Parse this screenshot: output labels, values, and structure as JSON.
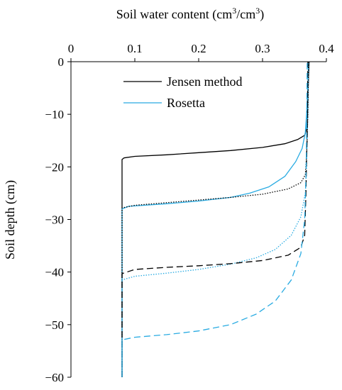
{
  "chart_data": {
    "type": "line",
    "xlabel_main": "Soil water content (cm",
    "xlabel_sup1": "3",
    "xlabel_mid": "/cm",
    "xlabel_sup2": "3",
    "xlabel_end": ")",
    "ylabel": "Soil depth (cm)",
    "xlim": [
      0,
      0.4
    ],
    "ylim": [
      -60,
      0
    ],
    "x_ticks": [
      "0",
      "0.1",
      "0.2",
      "0.3",
      "0.4"
    ],
    "y_ticks": [
      "0",
      "−10",
      "−20",
      "−30",
      "−40",
      "−50",
      "−60"
    ],
    "x_axis_position": "top",
    "grid": false,
    "legend_position": "top-center",
    "legend": [
      {
        "label": "Jensen method",
        "color": "#000000"
      },
      {
        "label": "Rosetta",
        "color": "#29abe2"
      }
    ],
    "series": [
      {
        "name": "Jensen method",
        "color": "#000000",
        "dash": "solid",
        "points": [
          [
            0.08,
            -60
          ],
          [
            0.08,
            -18.6
          ],
          [
            0.083,
            -18.3
          ],
          [
            0.1,
            -18.0
          ],
          [
            0.15,
            -17.7
          ],
          [
            0.2,
            -17.3
          ],
          [
            0.25,
            -16.9
          ],
          [
            0.3,
            -16.3
          ],
          [
            0.335,
            -15.6
          ],
          [
            0.355,
            -14.8
          ],
          [
            0.366,
            -14.0
          ],
          [
            0.37,
            -12.5
          ],
          [
            0.371,
            -8
          ],
          [
            0.372,
            -3
          ],
          [
            0.373,
            0
          ]
        ]
      },
      {
        "color": "#29abe2",
        "dash": "solid",
        "points": [
          [
            0.08,
            -60
          ],
          [
            0.08,
            -28.0
          ],
          [
            0.09,
            -27.5
          ],
          [
            0.15,
            -27.0
          ],
          [
            0.2,
            -26.5
          ],
          [
            0.25,
            -25.8
          ],
          [
            0.28,
            -25.0
          ],
          [
            0.31,
            -23.8
          ],
          [
            0.335,
            -21.8
          ],
          [
            0.352,
            -19.0
          ],
          [
            0.362,
            -16.5
          ],
          [
            0.367,
            -13.5
          ],
          [
            0.369,
            -10
          ],
          [
            0.371,
            -5
          ],
          [
            0.372,
            0
          ]
        ]
      },
      {
        "color": "#000000",
        "dash": "dotted",
        "points": [
          [
            0.08,
            -60
          ],
          [
            0.08,
            -27.8
          ],
          [
            0.1,
            -27.3
          ],
          [
            0.15,
            -26.8
          ],
          [
            0.2,
            -26.3
          ],
          [
            0.25,
            -25.8
          ],
          [
            0.3,
            -25.2
          ],
          [
            0.34,
            -24.2
          ],
          [
            0.36,
            -23.0
          ],
          [
            0.367,
            -21.5
          ],
          [
            0.369,
            -18
          ],
          [
            0.37,
            -14
          ],
          [
            0.371,
            -10
          ],
          [
            0.372,
            0
          ]
        ]
      },
      {
        "color": "#29abe2",
        "dash": "dotted",
        "points": [
          [
            0.08,
            -60
          ],
          [
            0.08,
            -41.5
          ],
          [
            0.1,
            -40.8
          ],
          [
            0.15,
            -40.2
          ],
          [
            0.2,
            -39.5
          ],
          [
            0.25,
            -38.5
          ],
          [
            0.29,
            -37.3
          ],
          [
            0.32,
            -35.7
          ],
          [
            0.345,
            -33.0
          ],
          [
            0.36,
            -29.5
          ],
          [
            0.367,
            -25
          ],
          [
            0.369,
            -20
          ],
          [
            0.37,
            -14
          ],
          [
            0.371,
            -10
          ],
          [
            0.372,
            0
          ]
        ]
      },
      {
        "color": "#000000",
        "dash": "dashed",
        "points": [
          [
            0.08,
            -60
          ],
          [
            0.08,
            -40.3
          ],
          [
            0.1,
            -39.5
          ],
          [
            0.15,
            -39.1
          ],
          [
            0.2,
            -38.8
          ],
          [
            0.25,
            -38.4
          ],
          [
            0.3,
            -37.8
          ],
          [
            0.34,
            -36.8
          ],
          [
            0.36,
            -35.3
          ],
          [
            0.366,
            -33
          ],
          [
            0.368,
            -25
          ],
          [
            0.369,
            -18
          ],
          [
            0.37,
            -14
          ],
          [
            0.371,
            0
          ]
        ]
      },
      {
        "color": "#29abe2",
        "dash": "dashed",
        "points": [
          [
            0.08,
            -60
          ],
          [
            0.08,
            -52.9
          ],
          [
            0.1,
            -52.4
          ],
          [
            0.15,
            -51.9
          ],
          [
            0.2,
            -51.2
          ],
          [
            0.25,
            -50.0
          ],
          [
            0.29,
            -48.0
          ],
          [
            0.32,
            -45.5
          ],
          [
            0.345,
            -41.5
          ],
          [
            0.36,
            -36.5
          ],
          [
            0.366,
            -30
          ],
          [
            0.368,
            -22
          ],
          [
            0.369,
            -14
          ],
          [
            0.37,
            0
          ]
        ]
      }
    ]
  }
}
